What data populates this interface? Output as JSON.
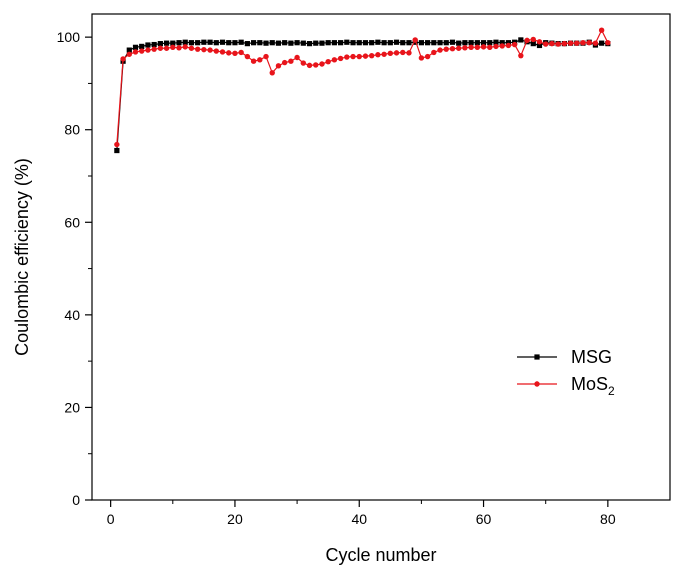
{
  "chart_data": {
    "type": "line",
    "title": "",
    "xlabel": "Cycle number",
    "ylabel": "Coulombic efficiency (%)",
    "xlim": [
      -3,
      90
    ],
    "ylim": [
      0,
      105
    ],
    "xticks": [
      0,
      20,
      40,
      60,
      80
    ],
    "yticks": [
      0,
      20,
      40,
      60,
      80,
      100
    ],
    "x_tick_labels": [
      "0",
      "20",
      "40",
      "60",
      "80"
    ],
    "y_tick_labels": [
      "0",
      "20",
      "40",
      "60",
      "80",
      "100"
    ],
    "grid": false,
    "legend_position": "right",
    "x": [
      1,
      2,
      3,
      4,
      5,
      6,
      7,
      8,
      9,
      10,
      11,
      12,
      13,
      14,
      15,
      16,
      17,
      18,
      19,
      20,
      21,
      22,
      23,
      24,
      25,
      26,
      27,
      28,
      29,
      30,
      31,
      32,
      33,
      34,
      35,
      36,
      37,
      38,
      39,
      40,
      41,
      42,
      43,
      44,
      45,
      46,
      47,
      48,
      49,
      50,
      51,
      52,
      53,
      54,
      55,
      56,
      57,
      58,
      59,
      60,
      61,
      62,
      63,
      64,
      65,
      66,
      67,
      68,
      69,
      70,
      71,
      72,
      73,
      74,
      75,
      76,
      77,
      78,
      79,
      80
    ],
    "series": [
      {
        "name": "MSG",
        "color": "#000000",
        "marker": "square",
        "values": [
          75.5,
          94.8,
          97.2,
          97.8,
          98.0,
          98.3,
          98.4,
          98.6,
          98.7,
          98.7,
          98.8,
          98.9,
          98.8,
          98.8,
          98.9,
          98.9,
          98.8,
          98.9,
          98.8,
          98.8,
          98.9,
          98.6,
          98.8,
          98.8,
          98.7,
          98.8,
          98.7,
          98.8,
          98.7,
          98.8,
          98.7,
          98.6,
          98.7,
          98.7,
          98.8,
          98.8,
          98.8,
          98.9,
          98.8,
          98.8,
          98.8,
          98.8,
          98.9,
          98.8,
          98.8,
          98.9,
          98.8,
          98.8,
          98.9,
          98.8,
          98.8,
          98.8,
          98.8,
          98.8,
          98.9,
          98.7,
          98.8,
          98.8,
          98.8,
          98.8,
          98.8,
          98.9,
          98.8,
          98.8,
          98.9,
          99.4,
          99.0,
          98.6,
          98.2,
          98.8,
          98.7,
          98.6,
          98.6,
          98.7,
          98.7,
          98.7,
          98.9,
          98.3,
          98.7,
          98.6
        ]
      },
      {
        "name": "MoS",
        "name_subscript": "2",
        "color": "#e8141b",
        "marker": "circle",
        "values": [
          76.8,
          95.3,
          96.3,
          96.8,
          97.0,
          97.2,
          97.4,
          97.6,
          97.6,
          97.8,
          97.7,
          97.9,
          97.6,
          97.4,
          97.3,
          97.2,
          97.0,
          96.8,
          96.6,
          96.5,
          96.7,
          95.8,
          94.8,
          95.1,
          95.8,
          92.3,
          93.8,
          94.5,
          94.8,
          95.6,
          94.4,
          93.9,
          94.0,
          94.2,
          94.7,
          95.1,
          95.4,
          95.7,
          95.8,
          95.8,
          95.9,
          96.0,
          96.2,
          96.3,
          96.5,
          96.6,
          96.7,
          96.6,
          99.4,
          95.5,
          95.8,
          96.7,
          97.2,
          97.4,
          97.5,
          97.6,
          97.7,
          97.8,
          97.8,
          97.9,
          97.8,
          98.0,
          98.1,
          98.2,
          98.4,
          96.0,
          99.3,
          99.5,
          99.0,
          98.5,
          98.6,
          98.5,
          98.6,
          98.7,
          98.7,
          98.8,
          98.8,
          98.7,
          101.5,
          98.8
        ]
      }
    ]
  }
}
